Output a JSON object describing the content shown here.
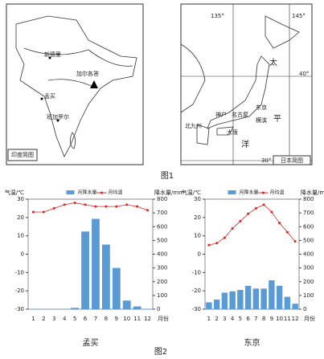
{
  "figure1": {
    "caption": "图1",
    "india_map": {
      "title": "印度简图",
      "labels": [
        "新德里",
        "加尔各答",
        "孟买",
        "班加罗尔"
      ]
    },
    "japan_map": {
      "title": "日本简图",
      "labels": [
        "135°",
        "145°",
        "40°",
        "30°",
        "太",
        "平",
        "洋",
        "东京",
        "名古屋",
        "横滨",
        "神户",
        "大阪",
        "北九州"
      ]
    }
  },
  "figure2": {
    "caption": "图2"
  },
  "chart_data": [
    {
      "type": "bar-line",
      "title": "孟买",
      "y_label": "气温/℃",
      "y2_label": "降水量/mm",
      "x_label": "月份",
      "categories": [
        "1",
        "2",
        "3",
        "4",
        "5",
        "6",
        "7",
        "8",
        "9",
        "10",
        "11",
        "12"
      ],
      "ylim": [
        -30,
        30
      ],
      "yticks": [
        -30,
        -20,
        -10,
        0,
        10,
        20,
        30
      ],
      "y2lim": [
        0,
        800
      ],
      "y2ticks": [
        0,
        100,
        200,
        300,
        400,
        500,
        600,
        700,
        800
      ],
      "series": [
        {
          "name": "月降水量",
          "kind": "bar",
          "axis": "y2",
          "color": "#5b9bd5",
          "values": [
            2,
            1,
            1,
            1,
            10,
            565,
            657,
            470,
            300,
            63,
            20,
            3
          ]
        },
        {
          "name": "月均温",
          "kind": "line",
          "axis": "y",
          "color": "#e02020",
          "values": [
            23,
            23,
            25,
            27,
            28,
            27,
            26,
            26,
            26,
            27,
            26,
            24
          ]
        }
      ]
    },
    {
      "type": "bar-line",
      "title": "东京",
      "y_label": "气温/℃",
      "y2_label": "降水量/mm",
      "x_label": "月份",
      "categories": [
        "1",
        "2",
        "3",
        "4",
        "5",
        "6",
        "7",
        "8",
        "9",
        "10",
        "11",
        "12"
      ],
      "ylim": [
        -30,
        30
      ],
      "yticks": [
        -30,
        -20,
        -10,
        0,
        10,
        20,
        30
      ],
      "y2lim": [
        0,
        800
      ],
      "y2ticks": [
        0,
        100,
        200,
        300,
        400,
        500,
        600,
        700,
        800
      ],
      "series": [
        {
          "name": "月降水量",
          "kind": "bar",
          "axis": "y2",
          "color": "#5b9bd5",
          "values": [
            50,
            70,
            120,
            130,
            140,
            170,
            150,
            150,
            210,
            170,
            90,
            40
          ]
        },
        {
          "name": "月均温",
          "kind": "line",
          "axis": "y",
          "color": "#e02020",
          "values": [
            5,
            6,
            9,
            14,
            18,
            22,
            25,
            27,
            23,
            17,
            12,
            7
          ]
        }
      ]
    }
  ]
}
